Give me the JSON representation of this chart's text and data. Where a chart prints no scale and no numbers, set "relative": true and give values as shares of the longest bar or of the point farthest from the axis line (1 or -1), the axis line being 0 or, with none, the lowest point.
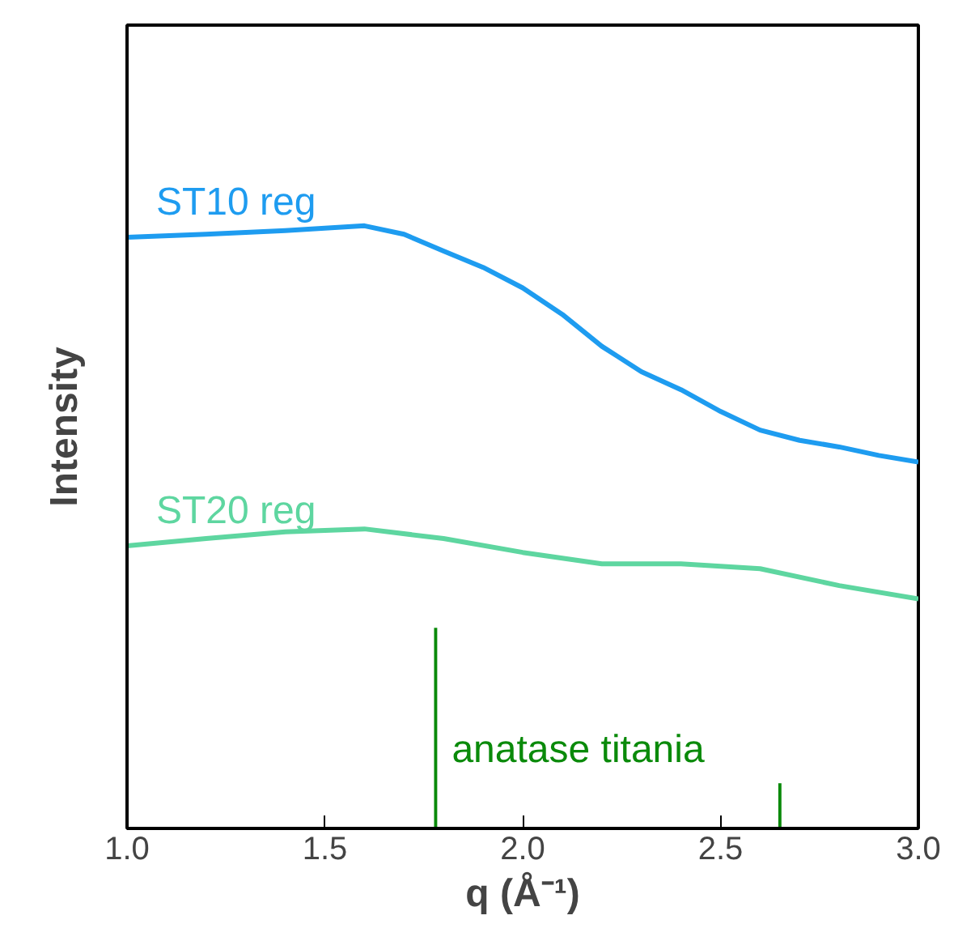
{
  "chart_data": {
    "type": "line",
    "relative": true,
    "xlabel": "q (Å⁻¹)",
    "ylabel": "Intensity",
    "xlim": [
      1.0,
      3.0
    ],
    "xticks": [
      {
        "value": 1.0,
        "label": "1.0"
      },
      {
        "value": 1.5,
        "label": "1.5"
      },
      {
        "value": 2.0,
        "label": "2.0"
      },
      {
        "value": 2.5,
        "label": "2.5"
      },
      {
        "value": 3.0,
        "label": "3.0"
      }
    ],
    "grid": false,
    "series": [
      {
        "name": "ST10 reg",
        "color": "#1e9cf0",
        "x": [
          1.0,
          1.2,
          1.4,
          1.6,
          1.7,
          1.8,
          1.9,
          2.0,
          2.1,
          2.2,
          2.3,
          2.4,
          2.5,
          2.6,
          2.7,
          2.8,
          2.9,
          3.0
        ],
        "values": [
          0.981,
          0.986,
          0.992,
          1.0,
          0.986,
          0.958,
          0.931,
          0.897,
          0.853,
          0.8,
          0.758,
          0.728,
          0.692,
          0.661,
          0.644,
          0.633,
          0.619,
          0.608
        ]
      },
      {
        "name": "ST20 reg",
        "color": "#5ed6a0",
        "x": [
          1.0,
          1.2,
          1.4,
          1.6,
          1.8,
          2.0,
          2.2,
          2.4,
          2.6,
          2.8,
          3.0
        ],
        "values": [
          0.469,
          0.481,
          0.492,
          0.497,
          0.481,
          0.458,
          0.439,
          0.439,
          0.431,
          0.403,
          0.381
        ]
      },
      {
        "name": "anatase titania",
        "type": "bar",
        "color": "#0a8a0a",
        "x": [
          1.78,
          2.65
        ],
        "values": [
          0.333,
          0.075
        ]
      }
    ]
  }
}
